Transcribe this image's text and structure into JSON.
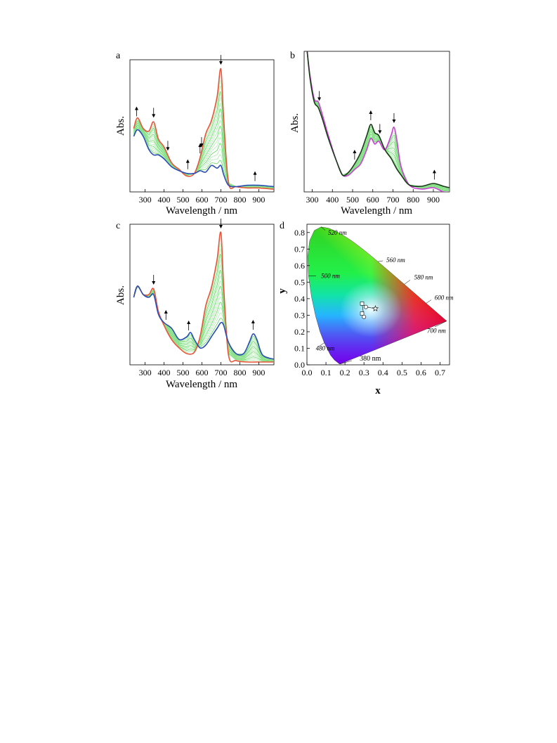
{
  "chart_data": [
    {
      "panel": "a",
      "type": "line",
      "xlabel": "Wavelength / nm",
      "ylabel": "Abs.",
      "xlim": [
        220,
        980
      ],
      "ylim": [
        0,
        1
      ],
      "xticks": [
        "300",
        "400",
        "500",
        "600",
        "700",
        "800",
        "900"
      ],
      "arrows": [
        {
          "x": 255,
          "direction": "up"
        },
        {
          "x": 345,
          "direction": "down"
        },
        {
          "x": 420,
          "direction": "down"
        },
        {
          "x": 525,
          "direction": "up"
        },
        {
          "x": 590,
          "direction": "up"
        },
        {
          "x": 598,
          "direction": "down"
        },
        {
          "x": 700,
          "direction": "down"
        },
        {
          "x": 880,
          "direction": "up"
        }
      ],
      "series": [
        {
          "color": "#e8553a",
          "x": [
            240,
            260,
            290,
            320,
            345,
            370,
            400,
            440,
            480,
            520,
            560,
            590,
            620,
            650,
            680,
            700,
            715,
            740,
            780,
            840,
            900,
            980
          ],
          "y": [
            0.48,
            0.56,
            0.48,
            0.46,
            0.53,
            0.4,
            0.34,
            0.22,
            0.17,
            0.12,
            0.14,
            0.26,
            0.44,
            0.54,
            0.72,
            0.93,
            0.55,
            0.07,
            0.04,
            0.03,
            0.03,
            0.02
          ]
        },
        {
          "color": "#2b4db5",
          "x": [
            240,
            260,
            290,
            320,
            345,
            370,
            400,
            440,
            480,
            520,
            560,
            590,
            620,
            650,
            680,
            700,
            715,
            740,
            780,
            840,
            900,
            980
          ],
          "y": [
            0.42,
            0.47,
            0.42,
            0.32,
            0.28,
            0.28,
            0.25,
            0.19,
            0.16,
            0.14,
            0.14,
            0.16,
            0.15,
            0.2,
            0.18,
            0.2,
            0.13,
            0.05,
            0.04,
            0.05,
            0.05,
            0.04
          ]
        }
      ]
    },
    {
      "panel": "b",
      "type": "line",
      "xlabel": "Wavelength / nm",
      "ylabel": "Abs.",
      "xlim": [
        260,
        980
      ],
      "ylim": [
        0,
        1
      ],
      "xticks": [
        "300",
        "400",
        "500",
        "600",
        "700",
        "800",
        "900"
      ],
      "arrows": [
        {
          "x": 335,
          "direction": "down"
        },
        {
          "x": 510,
          "direction": "up"
        },
        {
          "x": 590,
          "direction": "up"
        },
        {
          "x": 635,
          "direction": "down"
        },
        {
          "x": 705,
          "direction": "down"
        },
        {
          "x": 905,
          "direction": "up"
        }
      ],
      "series": [
        {
          "color": "#cc3fd6",
          "x": [
            275,
            290,
            310,
            330,
            350,
            380,
            420,
            450,
            480,
            510,
            540,
            570,
            590,
            610,
            630,
            660,
            690,
            705,
            720,
            740,
            780,
            840,
            900,
            950,
            980
          ],
          "y": [
            1.0,
            0.82,
            0.66,
            0.64,
            0.55,
            0.4,
            0.22,
            0.12,
            0.12,
            0.16,
            0.2,
            0.3,
            0.38,
            0.34,
            0.36,
            0.3,
            0.4,
            0.46,
            0.36,
            0.18,
            0.05,
            0.02,
            0.03,
            0.0,
            0.0
          ]
        },
        {
          "color": "#1a3a1a",
          "x": [
            275,
            290,
            310,
            330,
            350,
            380,
            420,
            450,
            480,
            510,
            540,
            570,
            590,
            610,
            630,
            660,
            690,
            705,
            720,
            740,
            780,
            840,
            900,
            950,
            980
          ],
          "y": [
            1.0,
            0.8,
            0.64,
            0.6,
            0.52,
            0.38,
            0.22,
            0.12,
            0.14,
            0.2,
            0.28,
            0.4,
            0.48,
            0.42,
            0.4,
            0.3,
            0.24,
            0.2,
            0.16,
            0.12,
            0.05,
            0.04,
            0.06,
            0.04,
            0.03
          ]
        }
      ]
    },
    {
      "panel": "c",
      "type": "line",
      "xlabel": "Wavelength / nm",
      "ylabel": "Abs.",
      "xlim": [
        220,
        980
      ],
      "ylim": [
        0,
        1
      ],
      "xticks": [
        "300",
        "400",
        "500",
        "600",
        "700",
        "800",
        "900"
      ],
      "arrows": [
        {
          "x": 345,
          "direction": "down"
        },
        {
          "x": 410,
          "direction": "up"
        },
        {
          "x": 530,
          "direction": "up"
        },
        {
          "x": 700,
          "direction": "down"
        },
        {
          "x": 870,
          "direction": "up"
        }
      ],
      "series": [
        {
          "color": "#e8553a",
          "x": [
            240,
            260,
            290,
            320,
            345,
            370,
            400,
            440,
            480,
            520,
            560,
            590,
            620,
            650,
            680,
            700,
            715,
            740,
            780,
            840,
            900,
            980
          ],
          "y": [
            0.48,
            0.56,
            0.5,
            0.5,
            0.54,
            0.38,
            0.28,
            0.18,
            0.12,
            0.08,
            0.09,
            0.2,
            0.42,
            0.55,
            0.75,
            0.94,
            0.55,
            0.07,
            0.03,
            0.02,
            0.02,
            0.02
          ]
        },
        {
          "color": "#2b4db5",
          "x": [
            240,
            260,
            290,
            320,
            345,
            370,
            400,
            440,
            480,
            520,
            540,
            560,
            590,
            620,
            650,
            680,
            700,
            715,
            740,
            780,
            820,
            850,
            870,
            890,
            920,
            980
          ],
          "y": [
            0.48,
            0.56,
            0.5,
            0.48,
            0.5,
            0.36,
            0.3,
            0.26,
            0.18,
            0.2,
            0.23,
            0.18,
            0.12,
            0.14,
            0.2,
            0.26,
            0.3,
            0.28,
            0.16,
            0.08,
            0.08,
            0.16,
            0.22,
            0.18,
            0.07,
            0.04
          ]
        }
      ]
    },
    {
      "panel": "d",
      "type": "scatter",
      "xlabel": "x",
      "ylabel": "y",
      "xlim": [
        0,
        0.75
      ],
      "ylim": [
        0,
        0.85
      ],
      "xticks": [
        "0.0",
        "0.1",
        "0.2",
        "0.3",
        "0.4",
        "0.5",
        "0.6",
        "0.7"
      ],
      "yticks": [
        "0.0",
        "0.1",
        "0.2",
        "0.3",
        "0.4",
        "0.5",
        "0.6",
        "0.7",
        "0.8"
      ],
      "wavelength_labels": [
        {
          "text": "520 nm",
          "x": 0.074,
          "y": 0.834
        },
        {
          "text": "560 nm",
          "x": 0.373,
          "y": 0.624
        },
        {
          "text": "500 nm",
          "x": 0.008,
          "y": 0.538
        },
        {
          "text": "580 nm",
          "x": 0.512,
          "y": 0.487
        },
        {
          "text": "600 nm",
          "x": 0.627,
          "y": 0.372
        },
        {
          "text": "700 nm",
          "x": 0.735,
          "y": 0.265
        },
        {
          "text": "480 nm",
          "x": 0.091,
          "y": 0.133
        },
        {
          "text": "380 nm",
          "x": 0.174,
          "y": 0.005
        }
      ],
      "points": [
        {
          "x": 0.29,
          "y": 0.37,
          "marker": "square"
        },
        {
          "x": 0.31,
          "y": 0.35,
          "marker": "circle"
        },
        {
          "x": 0.36,
          "y": 0.34,
          "marker": "star"
        },
        {
          "x": 0.29,
          "y": 0.31,
          "marker": "square"
        },
        {
          "x": 0.3,
          "y": 0.29,
          "marker": "circle"
        }
      ]
    }
  ]
}
